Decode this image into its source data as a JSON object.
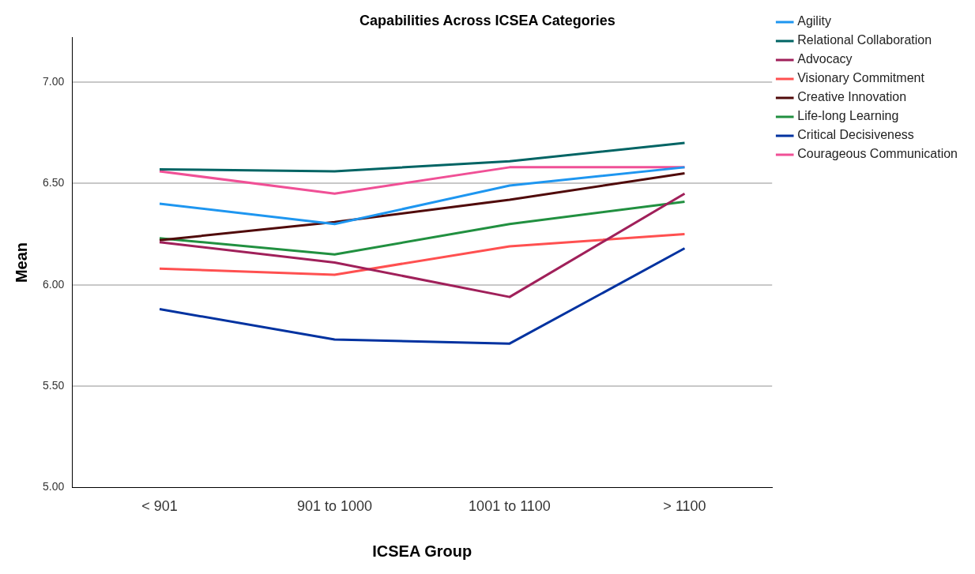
{
  "chart_data": {
    "type": "line",
    "title": "Capabilities Across ICSEA Categories",
    "xlabel": "ICSEA Group",
    "ylabel": "Mean",
    "categories": [
      "< 901",
      "901 to 1000",
      "1001 to 1100",
      "> 1100"
    ],
    "ylim": [
      5,
      7.22
    ],
    "yticks": [
      {
        "value": 5,
        "label": "5.00"
      },
      {
        "value": 5.5,
        "label": "5.50"
      },
      {
        "value": 6,
        "label": "6.00"
      },
      {
        "value": 6.5,
        "label": "6.50"
      },
      {
        "value": 7,
        "label": "7.00"
      }
    ],
    "grid": "y",
    "legend": "top right",
    "marker": "none",
    "line_style": "solid",
    "series": [
      {
        "name": "Agility",
        "color": "#1e96f0",
        "values": [
          6.4,
          6.3,
          6.49,
          6.58
        ]
      },
      {
        "name": "Relational Collaboration",
        "color": "#006464",
        "values": [
          6.57,
          6.56,
          6.61,
          6.7
        ]
      },
      {
        "name": "Advocacy",
        "color": "#a0205a",
        "values": [
          6.21,
          6.11,
          5.94,
          6.45
        ]
      },
      {
        "name": "Visionary Commitment",
        "color": "#ff5050",
        "values": [
          6.08,
          6.05,
          6.19,
          6.25
        ]
      },
      {
        "name": "Creative Innovation",
        "color": "#500a0a",
        "values": [
          6.22,
          6.31,
          6.42,
          6.55
        ]
      },
      {
        "name": "Life-long Learning",
        "color": "#219040",
        "values": [
          6.23,
          6.15,
          6.3,
          6.41
        ]
      },
      {
        "name": "Critical Decisiveness",
        "color": "#0032a0",
        "values": [
          5.88,
          5.73,
          5.71,
          6.18
        ]
      },
      {
        "name": "Courageous Communication",
        "color": "#f05096",
        "values": [
          6.56,
          6.45,
          6.58,
          6.58
        ]
      }
    ]
  }
}
